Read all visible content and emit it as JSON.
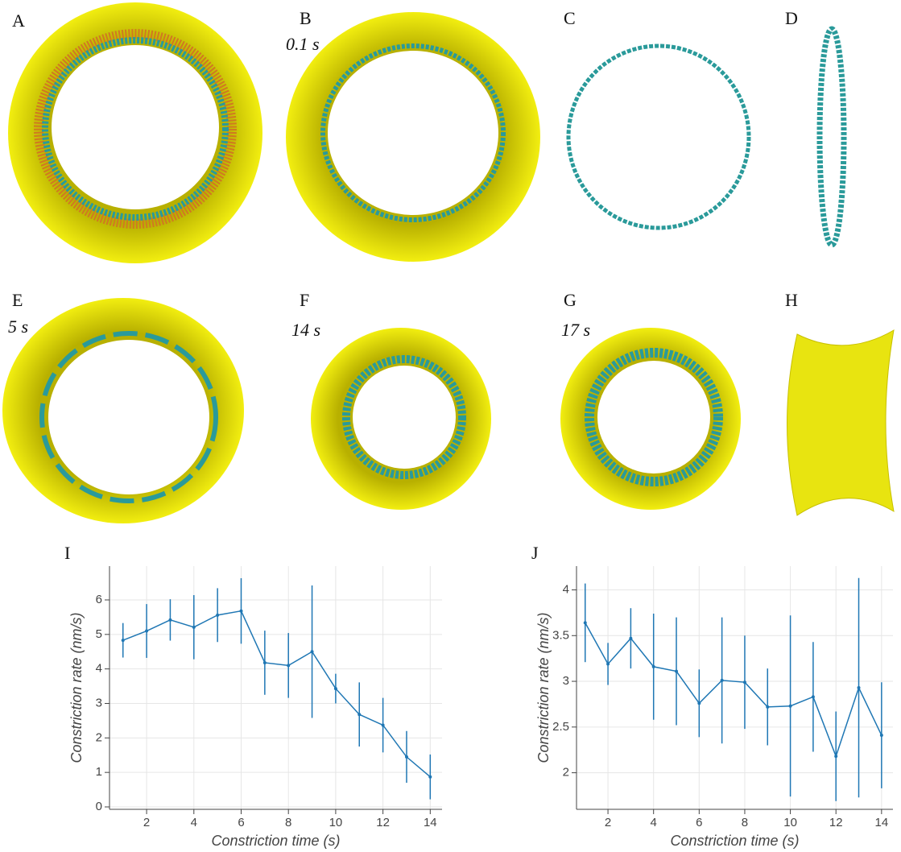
{
  "panels": [
    {
      "label": "A"
    },
    {
      "label": "B",
      "time": "0.1 s"
    },
    {
      "label": "C"
    },
    {
      "label": "D"
    },
    {
      "label": "E",
      "time": "5 s"
    },
    {
      "label": "F",
      "time": "14 s"
    },
    {
      "label": "G",
      "time": "17 s"
    },
    {
      "label": "H"
    }
  ],
  "chart_data": [
    {
      "type": "line",
      "panel": "I",
      "x_label": "Constriction time (s)",
      "y_label": "Constriction rate (nm/s)",
      "x": [
        1,
        2,
        3,
        4,
        5,
        6,
        7,
        8,
        9,
        10,
        11,
        12,
        13,
        14
      ],
      "series": [
        {
          "color": "#1f77b4",
          "values": [
            4.83,
            5.1,
            5.42,
            5.21,
            5.56,
            5.68,
            4.18,
            4.1,
            4.5,
            3.43,
            2.68,
            2.37,
            1.45,
            0.87
          ],
          "errors": [
            0.5,
            0.78,
            0.6,
            0.93,
            0.78,
            0.95,
            0.93,
            0.94,
            1.92,
            0.43,
            0.93,
            0.79,
            0.75,
            0.65
          ]
        }
      ],
      "xlim": [
        0.43,
        14.5
      ],
      "xticks": [
        2,
        4,
        6,
        8,
        10,
        12,
        14
      ],
      "ylim": [
        -0.07,
        6.98
      ],
      "yticks": [
        0,
        1,
        2,
        3,
        4,
        5,
        6
      ],
      "grid": true
    },
    {
      "type": "line",
      "panel": "J",
      "x_label": "Constriction time (s)",
      "y_label": "Constriction rate (nm/s)",
      "x": [
        1,
        2,
        3,
        4,
        5,
        6,
        7,
        8,
        9,
        10,
        11,
        12,
        13,
        14
      ],
      "series": [
        {
          "color": "#1f77b4",
          "values": [
            3.64,
            3.19,
            3.47,
            3.16,
            3.11,
            2.76,
            3.01,
            2.99,
            2.72,
            2.73,
            2.83,
            2.18,
            2.93,
            2.41
          ],
          "errors": [
            0.43,
            0.23,
            0.33,
            0.58,
            0.59,
            0.37,
            0.69,
            0.51,
            0.42,
            0.99,
            0.6,
            0.49,
            1.2,
            0.58
          ]
        }
      ],
      "xlim": [
        0.62,
        14.5
      ],
      "xticks": [
        2,
        4,
        6,
        8,
        10,
        12,
        14
      ],
      "ylim": [
        1.6,
        4.26
      ],
      "yticks": [
        2,
        2.5,
        3,
        3.5,
        4
      ],
      "grid": true
    }
  ]
}
